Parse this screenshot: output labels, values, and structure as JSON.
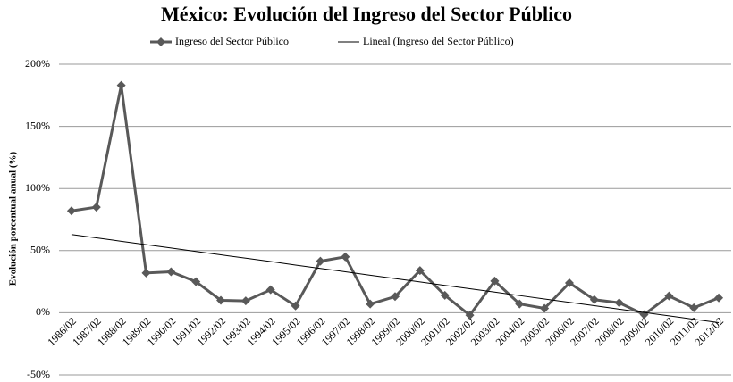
{
  "chart_data": {
    "type": "line",
    "title": "México: Evolución del Ingreso del Sector Público",
    "y_label": "Evolución porcentual anual (%)",
    "categories": [
      "1986/02",
      "1987/02",
      "1988/02",
      "1989/02",
      "1990/02",
      "1991/02",
      "1992/02",
      "1993/02",
      "1994/02",
      "1995/02",
      "1996/02",
      "1997/02",
      "1998/02",
      "1999/02",
      "2000/02",
      "2001/02",
      "2002/02",
      "2003/02",
      "2004/02",
      "2005/02",
      "2006/02",
      "2007/02",
      "2008/02",
      "2009/02",
      "2010/02",
      "2011/02",
      "2012/02"
    ],
    "series": [
      {
        "name": "Ingreso del Sector Público",
        "color": "#595959",
        "marker": "diamond",
        "values": [
          82,
          85,
          183,
          32,
          33,
          25,
          10,
          9.5,
          18.5,
          5.5,
          41.5,
          45,
          7,
          13,
          34,
          14,
          -2,
          25.5,
          7,
          3.5,
          24,
          10.5,
          8,
          -1.5,
          13.5,
          4,
          12
        ]
      },
      {
        "name": "Lineal (Ingreso del Sector Público)",
        "color": "#000000",
        "marker": "none",
        "values": [
          63,
          60.3,
          57.5,
          54.8,
          52.1,
          49.3,
          46.6,
          43.9,
          41.2,
          38.4,
          35.7,
          33.0,
          30.2,
          27.5,
          24.8,
          22.0,
          19.3,
          16.6,
          13.8,
          11.1,
          8.4,
          5.7,
          2.9,
          0.2,
          -2.5,
          -5.3,
          -8.0
        ]
      }
    ],
    "ylim": [
      -50,
      200
    ],
    "yticks": [
      {
        "value": -50,
        "label": "-50%"
      },
      {
        "value": 0,
        "label": "0%"
      },
      {
        "value": 50,
        "label": "50%"
      },
      {
        "value": 100,
        "label": "100%"
      },
      {
        "value": 150,
        "label": "150%"
      },
      {
        "value": 200,
        "label": "200%"
      }
    ],
    "grid": true,
    "legend": "top"
  }
}
